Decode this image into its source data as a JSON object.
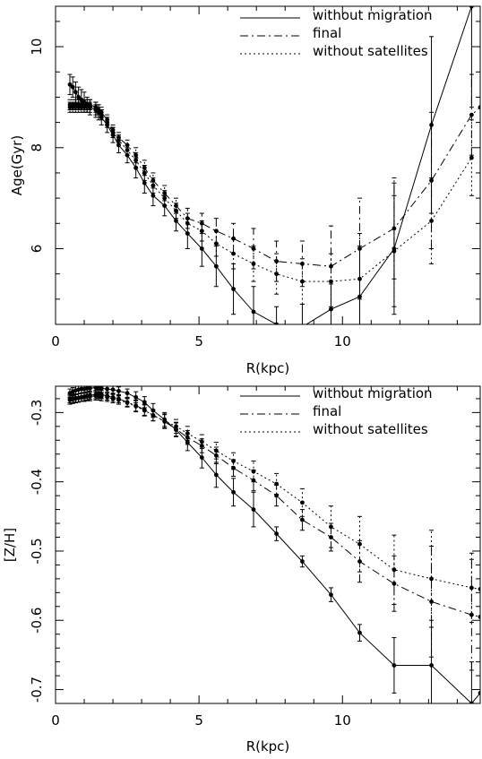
{
  "chart_data": [
    {
      "type": "line",
      "xlabel": "R(kpc)",
      "ylabel": "Age(Gyr)",
      "xlim": [
        0,
        14.8
      ],
      "ylim": [
        4.5,
        10.8
      ],
      "xticks": [
        "0",
        "5",
        "10"
      ],
      "yticks": [
        "6",
        "8",
        "10"
      ],
      "grid": false,
      "legend_placement": "top-right",
      "series": [
        {
          "name": "without migration",
          "style": "solid",
          "x": [
            0.5,
            0.6,
            0.7,
            0.8,
            0.9,
            1.0,
            1.1,
            1.2,
            1.4,
            1.5,
            1.6,
            1.8,
            2.0,
            2.2,
            2.5,
            2.8,
            3.1,
            3.4,
            3.8,
            4.2,
            4.6,
            5.1,
            5.6,
            6.2,
            6.9,
            7.7,
            8.6,
            9.6,
            10.6,
            11.8,
            13.1,
            14.5
          ],
          "y": [
            9.25,
            9.2,
            9.1,
            9.0,
            8.95,
            8.9,
            8.85,
            8.8,
            8.75,
            8.7,
            8.6,
            8.45,
            8.25,
            8.05,
            7.85,
            7.6,
            7.3,
            7.05,
            6.85,
            6.55,
            6.3,
            6.0,
            5.65,
            5.2,
            4.75,
            4.5,
            4.45,
            4.8,
            5.05,
            6.0,
            8.45,
            10.8
          ],
          "err": [
            0.2,
            0.2,
            0.2,
            0.2,
            0.2,
            0.2,
            0.15,
            0.15,
            0.15,
            0.15,
            0.15,
            0.15,
            0.15,
            0.15,
            0.15,
            0.2,
            0.2,
            0.2,
            0.2,
            0.2,
            0.3,
            0.35,
            0.4,
            0.5,
            0.5,
            0.35,
            0.45,
            0.5,
            1.0,
            1.3,
            1.75,
            2.0
          ]
        },
        {
          "name": "final",
          "style": "dashdot",
          "x": [
            0.5,
            0.6,
            0.7,
            0.8,
            0.9,
            1.0,
            1.1,
            1.2,
            1.4,
            1.5,
            1.6,
            1.8,
            2.0,
            2.2,
            2.5,
            2.8,
            3.1,
            3.4,
            3.8,
            4.2,
            4.6,
            5.1,
            5.6,
            6.2,
            6.9,
            7.7,
            8.6,
            9.6,
            10.6,
            11.8,
            13.1,
            14.5,
            14.8
          ],
          "y": [
            8.85,
            8.85,
            8.85,
            8.85,
            8.85,
            8.85,
            8.85,
            8.85,
            8.8,
            8.75,
            8.7,
            8.55,
            8.35,
            8.2,
            8.05,
            7.85,
            7.6,
            7.35,
            7.1,
            6.85,
            6.6,
            6.5,
            6.35,
            6.2,
            6.0,
            5.75,
            5.7,
            5.65,
            6.0,
            6.4,
            7.35,
            8.65,
            8.8
          ],
          "err": [
            0.1,
            0.1,
            0.1,
            0.1,
            0.1,
            0.1,
            0.1,
            0.1,
            0.1,
            0.1,
            0.1,
            0.1,
            0.1,
            0.1,
            0.1,
            0.15,
            0.15,
            0.15,
            0.15,
            0.15,
            0.2,
            0.2,
            0.25,
            0.3,
            0.4,
            0.4,
            0.45,
            0.8,
            1.0,
            1.0,
            1.35,
            0.8,
            0
          ]
        },
        {
          "name": "without satellites",
          "style": "dotted",
          "x": [
            0.5,
            0.6,
            0.7,
            0.8,
            0.9,
            1.0,
            1.1,
            1.2,
            1.4,
            1.5,
            1.6,
            1.8,
            2.0,
            2.2,
            2.5,
            2.8,
            3.1,
            3.4,
            3.8,
            4.2,
            4.6,
            5.1,
            5.6,
            6.2,
            6.9,
            7.7,
            8.6,
            9.6,
            10.6,
            11.8,
            13.1,
            14.5
          ],
          "y": [
            8.8,
            8.8,
            8.8,
            8.8,
            8.8,
            8.8,
            8.8,
            8.8,
            8.75,
            8.7,
            8.65,
            8.5,
            8.3,
            8.15,
            7.95,
            7.75,
            7.5,
            7.25,
            7.0,
            6.75,
            6.5,
            6.35,
            6.1,
            5.9,
            5.7,
            5.5,
            5.35,
            5.35,
            5.4,
            5.95,
            6.55,
            7.8
          ],
          "err": [
            0.1,
            0.1,
            0.1,
            0.1,
            0.1,
            0.1,
            0.1,
            0.1,
            0.1,
            0.1,
            0.1,
            0.1,
            0.1,
            0.1,
            0.1,
            0.15,
            0.15,
            0.15,
            0.15,
            0.15,
            0.2,
            0.2,
            0.25,
            0.3,
            0.35,
            0.4,
            0.45,
            0.55,
            0.9,
            1.1,
            0.85,
            0.75
          ]
        }
      ]
    },
    {
      "type": "line",
      "xlabel": "R(kpc)",
      "ylabel": "[Z/H]",
      "xlim": [
        0,
        14.8
      ],
      "ylim": [
        -0.72,
        -0.262
      ],
      "xticks": [
        "0",
        "5",
        "10"
      ],
      "yticks": [
        "-0.3",
        "-0.4",
        "-0.5",
        "-0.6",
        "-0.7"
      ],
      "grid": false,
      "legend_placement": "top-right",
      "series": [
        {
          "name": "without migration",
          "style": "solid",
          "x": [
            0.5,
            0.6,
            0.7,
            0.8,
            0.9,
            1.0,
            1.1,
            1.2,
            1.4,
            1.5,
            1.6,
            1.8,
            2.0,
            2.2,
            2.5,
            2.8,
            3.1,
            3.4,
            3.8,
            4.2,
            4.6,
            5.1,
            5.6,
            6.2,
            6.9,
            7.7,
            8.6,
            9.6,
            10.6,
            11.8,
            13.1,
            14.5,
            14.8
          ],
          "y": [
            -0.272,
            -0.27,
            -0.268,
            -0.267,
            -0.266,
            -0.266,
            -0.265,
            -0.265,
            -0.264,
            -0.264,
            -0.265,
            -0.266,
            -0.267,
            -0.269,
            -0.272,
            -0.278,
            -0.285,
            -0.297,
            -0.31,
            -0.325,
            -0.343,
            -0.365,
            -0.39,
            -0.415,
            -0.44,
            -0.475,
            -0.515,
            -0.563,
            -0.618,
            -0.665,
            -0.665,
            -0.72,
            -0.705
          ],
          "err": [
            0.006,
            0.006,
            0.006,
            0.006,
            0.006,
            0.006,
            0.006,
            0.006,
            0.006,
            0.006,
            0.006,
            0.006,
            0.006,
            0.006,
            0.006,
            0.008,
            0.008,
            0.01,
            0.01,
            0.01,
            0.012,
            0.015,
            0.018,
            0.02,
            0.025,
            0.01,
            0.008,
            0.01,
            0.012,
            0.04,
            0.065,
            0.06,
            0
          ]
        },
        {
          "name": "final",
          "style": "dashdot",
          "x": [
            0.5,
            0.6,
            0.7,
            0.8,
            0.9,
            1.0,
            1.1,
            1.2,
            1.4,
            1.5,
            1.6,
            1.8,
            2.0,
            2.2,
            2.5,
            2.8,
            3.1,
            3.4,
            3.8,
            4.2,
            4.6,
            5.1,
            5.6,
            6.2,
            6.9,
            7.7,
            8.6,
            9.6,
            10.6,
            11.8,
            13.1,
            14.5,
            14.8
          ],
          "y": [
            -0.282,
            -0.281,
            -0.28,
            -0.279,
            -0.278,
            -0.277,
            -0.276,
            -0.275,
            -0.274,
            -0.273,
            -0.274,
            -0.276,
            -0.278,
            -0.28,
            -0.285,
            -0.29,
            -0.296,
            -0.304,
            -0.313,
            -0.324,
            -0.336,
            -0.348,
            -0.362,
            -0.38,
            -0.398,
            -0.42,
            -0.455,
            -0.48,
            -0.515,
            -0.547,
            -0.573,
            -0.592,
            -0.595
          ],
          "err": [
            0.006,
            0.006,
            0.006,
            0.006,
            0.006,
            0.006,
            0.006,
            0.006,
            0.006,
            0.006,
            0.006,
            0.006,
            0.006,
            0.006,
            0.006,
            0.008,
            0.008,
            0.008,
            0.01,
            0.01,
            0.01,
            0.01,
            0.012,
            0.012,
            0.015,
            0.015,
            0.015,
            0.02,
            0.03,
            0.04,
            0.08,
            0.08,
            0
          ]
        },
        {
          "name": "without satellites",
          "style": "dotted",
          "x": [
            0.5,
            0.6,
            0.7,
            0.8,
            0.9,
            1.0,
            1.1,
            1.2,
            1.4,
            1.5,
            1.6,
            1.8,
            2.0,
            2.2,
            2.5,
            2.8,
            3.1,
            3.4,
            3.8,
            4.2,
            4.6,
            5.1,
            5.6,
            6.2,
            6.9,
            7.7,
            8.6,
            9.6,
            10.6,
            11.8,
            13.1,
            14.5,
            14.8
          ],
          "y": [
            -0.28,
            -0.28,
            -0.279,
            -0.279,
            -0.278,
            -0.278,
            -0.277,
            -0.277,
            -0.276,
            -0.276,
            -0.277,
            -0.278,
            -0.28,
            -0.282,
            -0.286,
            -0.291,
            -0.297,
            -0.304,
            -0.312,
            -0.32,
            -0.33,
            -0.342,
            -0.355,
            -0.37,
            -0.385,
            -0.403,
            -0.43,
            -0.465,
            -0.49,
            -0.527,
            -0.54,
            -0.553,
            -0.555
          ],
          "err": [
            0.006,
            0.006,
            0.006,
            0.006,
            0.006,
            0.006,
            0.006,
            0.006,
            0.006,
            0.006,
            0.006,
            0.006,
            0.006,
            0.006,
            0.006,
            0.008,
            0.008,
            0.008,
            0.01,
            0.01,
            0.01,
            0.01,
            0.012,
            0.012,
            0.015,
            0.015,
            0.02,
            0.03,
            0.04,
            0.05,
            0.07,
            0.05,
            0
          ]
        }
      ]
    }
  ]
}
